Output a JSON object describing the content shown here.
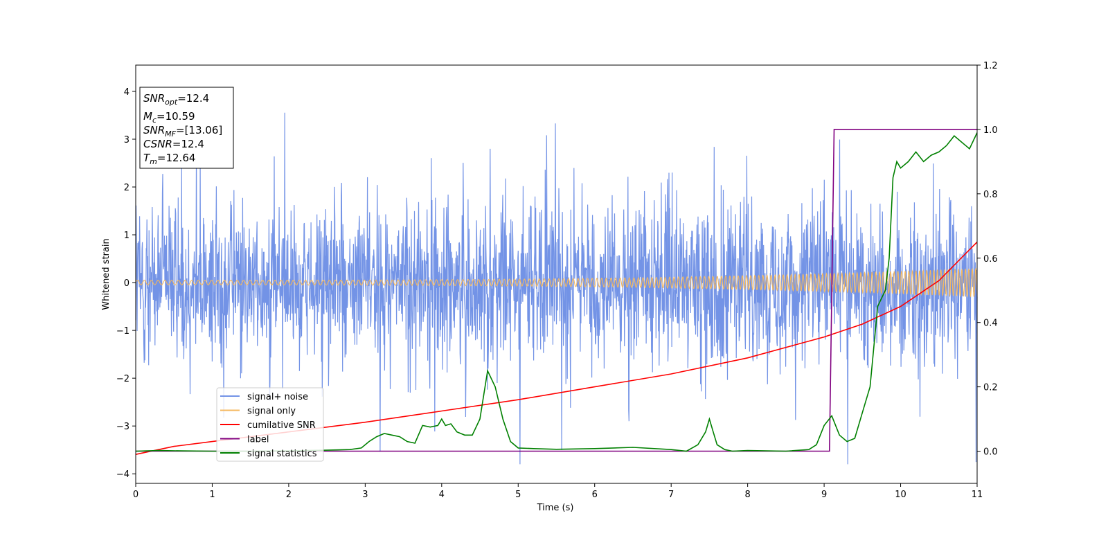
{
  "chart_data": {
    "type": "line",
    "xlabel": "Time (s)",
    "ylabel_left": "Whitened strain",
    "xlim": [
      0,
      11
    ],
    "ylim_left": [
      -4.2,
      4.55
    ],
    "ylim_right": [
      -0.1,
      1.2
    ],
    "xticks": [
      "0",
      "1",
      "2",
      "3",
      "4",
      "5",
      "6",
      "7",
      "8",
      "9",
      "10",
      "11"
    ],
    "yticks_left": [
      "−4",
      "−3",
      "−2",
      "−1",
      "0",
      "1",
      "2",
      "3",
      "4"
    ],
    "yticks_right": [
      "0.0",
      "0.2",
      "0.4",
      "0.6",
      "0.8",
      "1.0",
      "1.2"
    ],
    "grid": false,
    "legend_position": "lower-left",
    "annotation": {
      "snr_opt": {
        "base": "SNR",
        "sub": "opt",
        "value": "=12.4"
      },
      "mc": {
        "base": "M",
        "sub": "c",
        "value": "=10.59"
      },
      "snr_mf": {
        "base": "SNR",
        "sub": "MF",
        "value": "=[13.06]"
      },
      "csnr": {
        "base": "CSNR",
        "value": "=12.4"
      },
      "tm": {
        "base": "T",
        "sub": "m",
        "value": "=12.64"
      }
    },
    "series": [
      {
        "name": "signal+ noise",
        "axis": "left",
        "color": "#7393e6",
        "kind": "noise",
        "amplitude_envelope": [
          1.6,
          2.9
        ],
        "peak_min": -3.8,
        "peak_max": 4.15
      },
      {
        "name": "signal only",
        "axis": "left",
        "color": "#f4b860",
        "kind": "chirp",
        "amplitude_start": 0.05,
        "amplitude_end": 0.3
      },
      {
        "name": "cumilative SNR",
        "axis": "right",
        "color": "#ff0000",
        "x": [
          0,
          0.5,
          1,
          2,
          3,
          4,
          5,
          6,
          7,
          8,
          9,
          9.5,
          10,
          10.5,
          11
        ],
        "y": [
          -0.01,
          0.015,
          0.03,
          0.06,
          0.09,
          0.125,
          0.16,
          0.2,
          0.24,
          0.29,
          0.355,
          0.395,
          0.45,
          0.53,
          0.65
        ]
      },
      {
        "name": "label",
        "axis": "right",
        "color": "#800080",
        "x": [
          0,
          9.07,
          9.13,
          11
        ],
        "y": [
          0,
          0,
          1,
          1
        ]
      },
      {
        "name": "signal statistics",
        "axis": "right",
        "color": "#008000",
        "x": [
          0,
          0.3,
          0.6,
          1.0,
          1.5,
          2.0,
          2.5,
          2.8,
          2.95,
          3.05,
          3.15,
          3.25,
          3.35,
          3.45,
          3.55,
          3.65,
          3.75,
          3.85,
          3.95,
          4.0,
          4.05,
          4.12,
          4.2,
          4.3,
          4.4,
          4.5,
          4.6,
          4.7,
          4.8,
          4.9,
          5.0,
          5.2,
          5.5,
          6.0,
          6.5,
          7.0,
          7.2,
          7.35,
          7.45,
          7.5,
          7.55,
          7.6,
          7.7,
          7.8,
          8.0,
          8.5,
          8.8,
          8.9,
          9.0,
          9.1,
          9.2,
          9.3,
          9.4,
          9.5,
          9.6,
          9.7,
          9.8,
          9.85,
          9.9,
          9.95,
          10.0,
          10.1,
          10.2,
          10.3,
          10.4,
          10.5,
          10.6,
          10.7,
          10.8,
          10.9,
          11.0
        ],
        "y": [
          0.0,
          0.002,
          0.001,
          0.0,
          0.0,
          0.001,
          0.003,
          0.005,
          0.01,
          0.03,
          0.045,
          0.055,
          0.05,
          0.045,
          0.03,
          0.025,
          0.08,
          0.075,
          0.08,
          0.1,
          0.08,
          0.085,
          0.06,
          0.05,
          0.05,
          0.1,
          0.25,
          0.2,
          0.1,
          0.03,
          0.01,
          0.008,
          0.006,
          0.008,
          0.012,
          0.005,
          0.0,
          0.02,
          0.06,
          0.1,
          0.06,
          0.02,
          0.005,
          0.0,
          0.002,
          0.0,
          0.005,
          0.02,
          0.08,
          0.11,
          0.05,
          0.03,
          0.04,
          0.12,
          0.2,
          0.45,
          0.5,
          0.6,
          0.85,
          0.9,
          0.88,
          0.9,
          0.93,
          0.9,
          0.92,
          0.93,
          0.95,
          0.98,
          0.96,
          0.94,
          0.99
        ]
      }
    ]
  }
}
